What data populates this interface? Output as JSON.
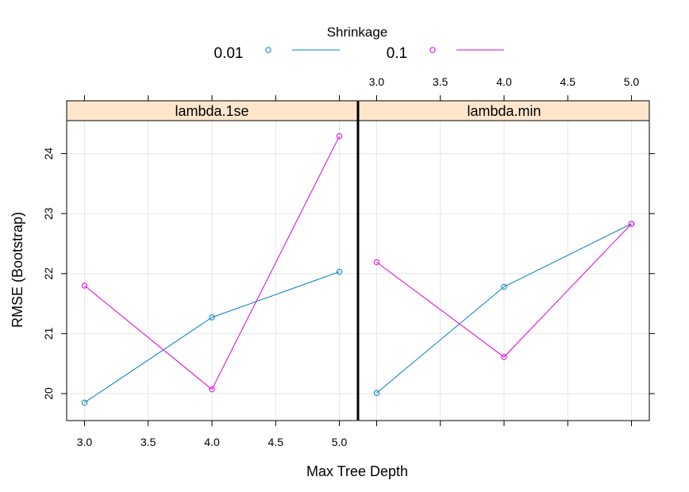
{
  "chart_data": {
    "type": "line",
    "xlabel": "Max Tree Depth",
    "ylabel": "RMSE (Bootstrap)",
    "xlim": [
      2.86,
      5.14
    ],
    "ylim": [
      19.55,
      24.55
    ],
    "x_ticks": [
      3.0,
      3.5,
      4.0,
      4.5,
      5.0
    ],
    "x_tick_labels": [
      "3.0",
      "3.5",
      "4.0",
      "4.5",
      "5.0"
    ],
    "y_ticks": [
      20,
      21,
      22,
      23,
      24
    ],
    "y_tick_labels": [
      "20",
      "21",
      "22",
      "23",
      "24"
    ],
    "grid": true,
    "legend": {
      "title": "Shrinkage",
      "placement": "top",
      "entries": [
        {
          "label": "0.01",
          "color": "#0080C0"
        },
        {
          "label": "0.1",
          "color": "#E000E0"
        }
      ]
    },
    "panels": [
      {
        "strip": "lambda.1se",
        "series": [
          {
            "name": "0.01",
            "color": "#0080C0",
            "x": [
              3,
              4,
              5
            ],
            "y": [
              19.85,
              21.27,
              22.03
            ]
          },
          {
            "name": "0.1",
            "color": "#E000E0",
            "x": [
              3,
              4,
              5
            ],
            "y": [
              21.8,
              20.07,
              24.29
            ]
          }
        ]
      },
      {
        "strip": "lambda.min",
        "series": [
          {
            "name": "0.01",
            "color": "#0080C0",
            "x": [
              3,
              4,
              5
            ],
            "y": [
              20.01,
              21.78,
              22.83
            ]
          },
          {
            "name": "0.1",
            "color": "#E000E0",
            "x": [
              3,
              4,
              5
            ],
            "y": [
              22.19,
              20.61,
              22.83
            ]
          }
        ]
      }
    ]
  }
}
